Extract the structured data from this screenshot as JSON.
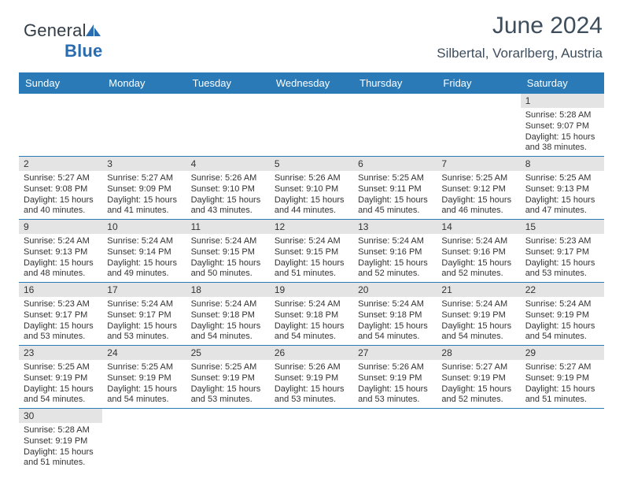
{
  "logo": {
    "part1": "General",
    "part2": "Blue"
  },
  "title": "June 2024",
  "subtitle": "Silbertal, Vorarlberg, Austria",
  "colors": {
    "header_bg": "#2a7ab8",
    "header_fg": "#ffffff",
    "daynum_bg": "#e4e4e4",
    "border": "#2a7ab8",
    "text": "#333333",
    "title_color": "#3d4d5c",
    "logo_blue": "#2a6cb0"
  },
  "day_names": [
    "Sunday",
    "Monday",
    "Tuesday",
    "Wednesday",
    "Thursday",
    "Friday",
    "Saturday"
  ],
  "weeks": [
    [
      {
        "empty": true
      },
      {
        "empty": true
      },
      {
        "empty": true
      },
      {
        "empty": true
      },
      {
        "empty": true
      },
      {
        "empty": true
      },
      {
        "n": "1",
        "sr": "Sunrise: 5:28 AM",
        "ss": "Sunset: 9:07 PM",
        "dl1": "Daylight: 15 hours",
        "dl2": "and 38 minutes."
      }
    ],
    [
      {
        "n": "2",
        "sr": "Sunrise: 5:27 AM",
        "ss": "Sunset: 9:08 PM",
        "dl1": "Daylight: 15 hours",
        "dl2": "and 40 minutes."
      },
      {
        "n": "3",
        "sr": "Sunrise: 5:27 AM",
        "ss": "Sunset: 9:09 PM",
        "dl1": "Daylight: 15 hours",
        "dl2": "and 41 minutes."
      },
      {
        "n": "4",
        "sr": "Sunrise: 5:26 AM",
        "ss": "Sunset: 9:10 PM",
        "dl1": "Daylight: 15 hours",
        "dl2": "and 43 minutes."
      },
      {
        "n": "5",
        "sr": "Sunrise: 5:26 AM",
        "ss": "Sunset: 9:10 PM",
        "dl1": "Daylight: 15 hours",
        "dl2": "and 44 minutes."
      },
      {
        "n": "6",
        "sr": "Sunrise: 5:25 AM",
        "ss": "Sunset: 9:11 PM",
        "dl1": "Daylight: 15 hours",
        "dl2": "and 45 minutes."
      },
      {
        "n": "7",
        "sr": "Sunrise: 5:25 AM",
        "ss": "Sunset: 9:12 PM",
        "dl1": "Daylight: 15 hours",
        "dl2": "and 46 minutes."
      },
      {
        "n": "8",
        "sr": "Sunrise: 5:25 AM",
        "ss": "Sunset: 9:13 PM",
        "dl1": "Daylight: 15 hours",
        "dl2": "and 47 minutes."
      }
    ],
    [
      {
        "n": "9",
        "sr": "Sunrise: 5:24 AM",
        "ss": "Sunset: 9:13 PM",
        "dl1": "Daylight: 15 hours",
        "dl2": "and 48 minutes."
      },
      {
        "n": "10",
        "sr": "Sunrise: 5:24 AM",
        "ss": "Sunset: 9:14 PM",
        "dl1": "Daylight: 15 hours",
        "dl2": "and 49 minutes."
      },
      {
        "n": "11",
        "sr": "Sunrise: 5:24 AM",
        "ss": "Sunset: 9:15 PM",
        "dl1": "Daylight: 15 hours",
        "dl2": "and 50 minutes."
      },
      {
        "n": "12",
        "sr": "Sunrise: 5:24 AM",
        "ss": "Sunset: 9:15 PM",
        "dl1": "Daylight: 15 hours",
        "dl2": "and 51 minutes."
      },
      {
        "n": "13",
        "sr": "Sunrise: 5:24 AM",
        "ss": "Sunset: 9:16 PM",
        "dl1": "Daylight: 15 hours",
        "dl2": "and 52 minutes."
      },
      {
        "n": "14",
        "sr": "Sunrise: 5:24 AM",
        "ss": "Sunset: 9:16 PM",
        "dl1": "Daylight: 15 hours",
        "dl2": "and 52 minutes."
      },
      {
        "n": "15",
        "sr": "Sunrise: 5:23 AM",
        "ss": "Sunset: 9:17 PM",
        "dl1": "Daylight: 15 hours",
        "dl2": "and 53 minutes."
      }
    ],
    [
      {
        "n": "16",
        "sr": "Sunrise: 5:23 AM",
        "ss": "Sunset: 9:17 PM",
        "dl1": "Daylight: 15 hours",
        "dl2": "and 53 minutes."
      },
      {
        "n": "17",
        "sr": "Sunrise: 5:24 AM",
        "ss": "Sunset: 9:17 PM",
        "dl1": "Daylight: 15 hours",
        "dl2": "and 53 minutes."
      },
      {
        "n": "18",
        "sr": "Sunrise: 5:24 AM",
        "ss": "Sunset: 9:18 PM",
        "dl1": "Daylight: 15 hours",
        "dl2": "and 54 minutes."
      },
      {
        "n": "19",
        "sr": "Sunrise: 5:24 AM",
        "ss": "Sunset: 9:18 PM",
        "dl1": "Daylight: 15 hours",
        "dl2": "and 54 minutes."
      },
      {
        "n": "20",
        "sr": "Sunrise: 5:24 AM",
        "ss": "Sunset: 9:18 PM",
        "dl1": "Daylight: 15 hours",
        "dl2": "and 54 minutes."
      },
      {
        "n": "21",
        "sr": "Sunrise: 5:24 AM",
        "ss": "Sunset: 9:19 PM",
        "dl1": "Daylight: 15 hours",
        "dl2": "and 54 minutes."
      },
      {
        "n": "22",
        "sr": "Sunrise: 5:24 AM",
        "ss": "Sunset: 9:19 PM",
        "dl1": "Daylight: 15 hours",
        "dl2": "and 54 minutes."
      }
    ],
    [
      {
        "n": "23",
        "sr": "Sunrise: 5:25 AM",
        "ss": "Sunset: 9:19 PM",
        "dl1": "Daylight: 15 hours",
        "dl2": "and 54 minutes."
      },
      {
        "n": "24",
        "sr": "Sunrise: 5:25 AM",
        "ss": "Sunset: 9:19 PM",
        "dl1": "Daylight: 15 hours",
        "dl2": "and 54 minutes."
      },
      {
        "n": "25",
        "sr": "Sunrise: 5:25 AM",
        "ss": "Sunset: 9:19 PM",
        "dl1": "Daylight: 15 hours",
        "dl2": "and 53 minutes."
      },
      {
        "n": "26",
        "sr": "Sunrise: 5:26 AM",
        "ss": "Sunset: 9:19 PM",
        "dl1": "Daylight: 15 hours",
        "dl2": "and 53 minutes."
      },
      {
        "n": "27",
        "sr": "Sunrise: 5:26 AM",
        "ss": "Sunset: 9:19 PM",
        "dl1": "Daylight: 15 hours",
        "dl2": "and 53 minutes."
      },
      {
        "n": "28",
        "sr": "Sunrise: 5:27 AM",
        "ss": "Sunset: 9:19 PM",
        "dl1": "Daylight: 15 hours",
        "dl2": "and 52 minutes."
      },
      {
        "n": "29",
        "sr": "Sunrise: 5:27 AM",
        "ss": "Sunset: 9:19 PM",
        "dl1": "Daylight: 15 hours",
        "dl2": "and 51 minutes."
      }
    ],
    [
      {
        "n": "30",
        "sr": "Sunrise: 5:28 AM",
        "ss": "Sunset: 9:19 PM",
        "dl1": "Daylight: 15 hours",
        "dl2": "and 51 minutes."
      },
      {
        "empty": true
      },
      {
        "empty": true
      },
      {
        "empty": true
      },
      {
        "empty": true
      },
      {
        "empty": true
      },
      {
        "empty": true
      }
    ]
  ]
}
